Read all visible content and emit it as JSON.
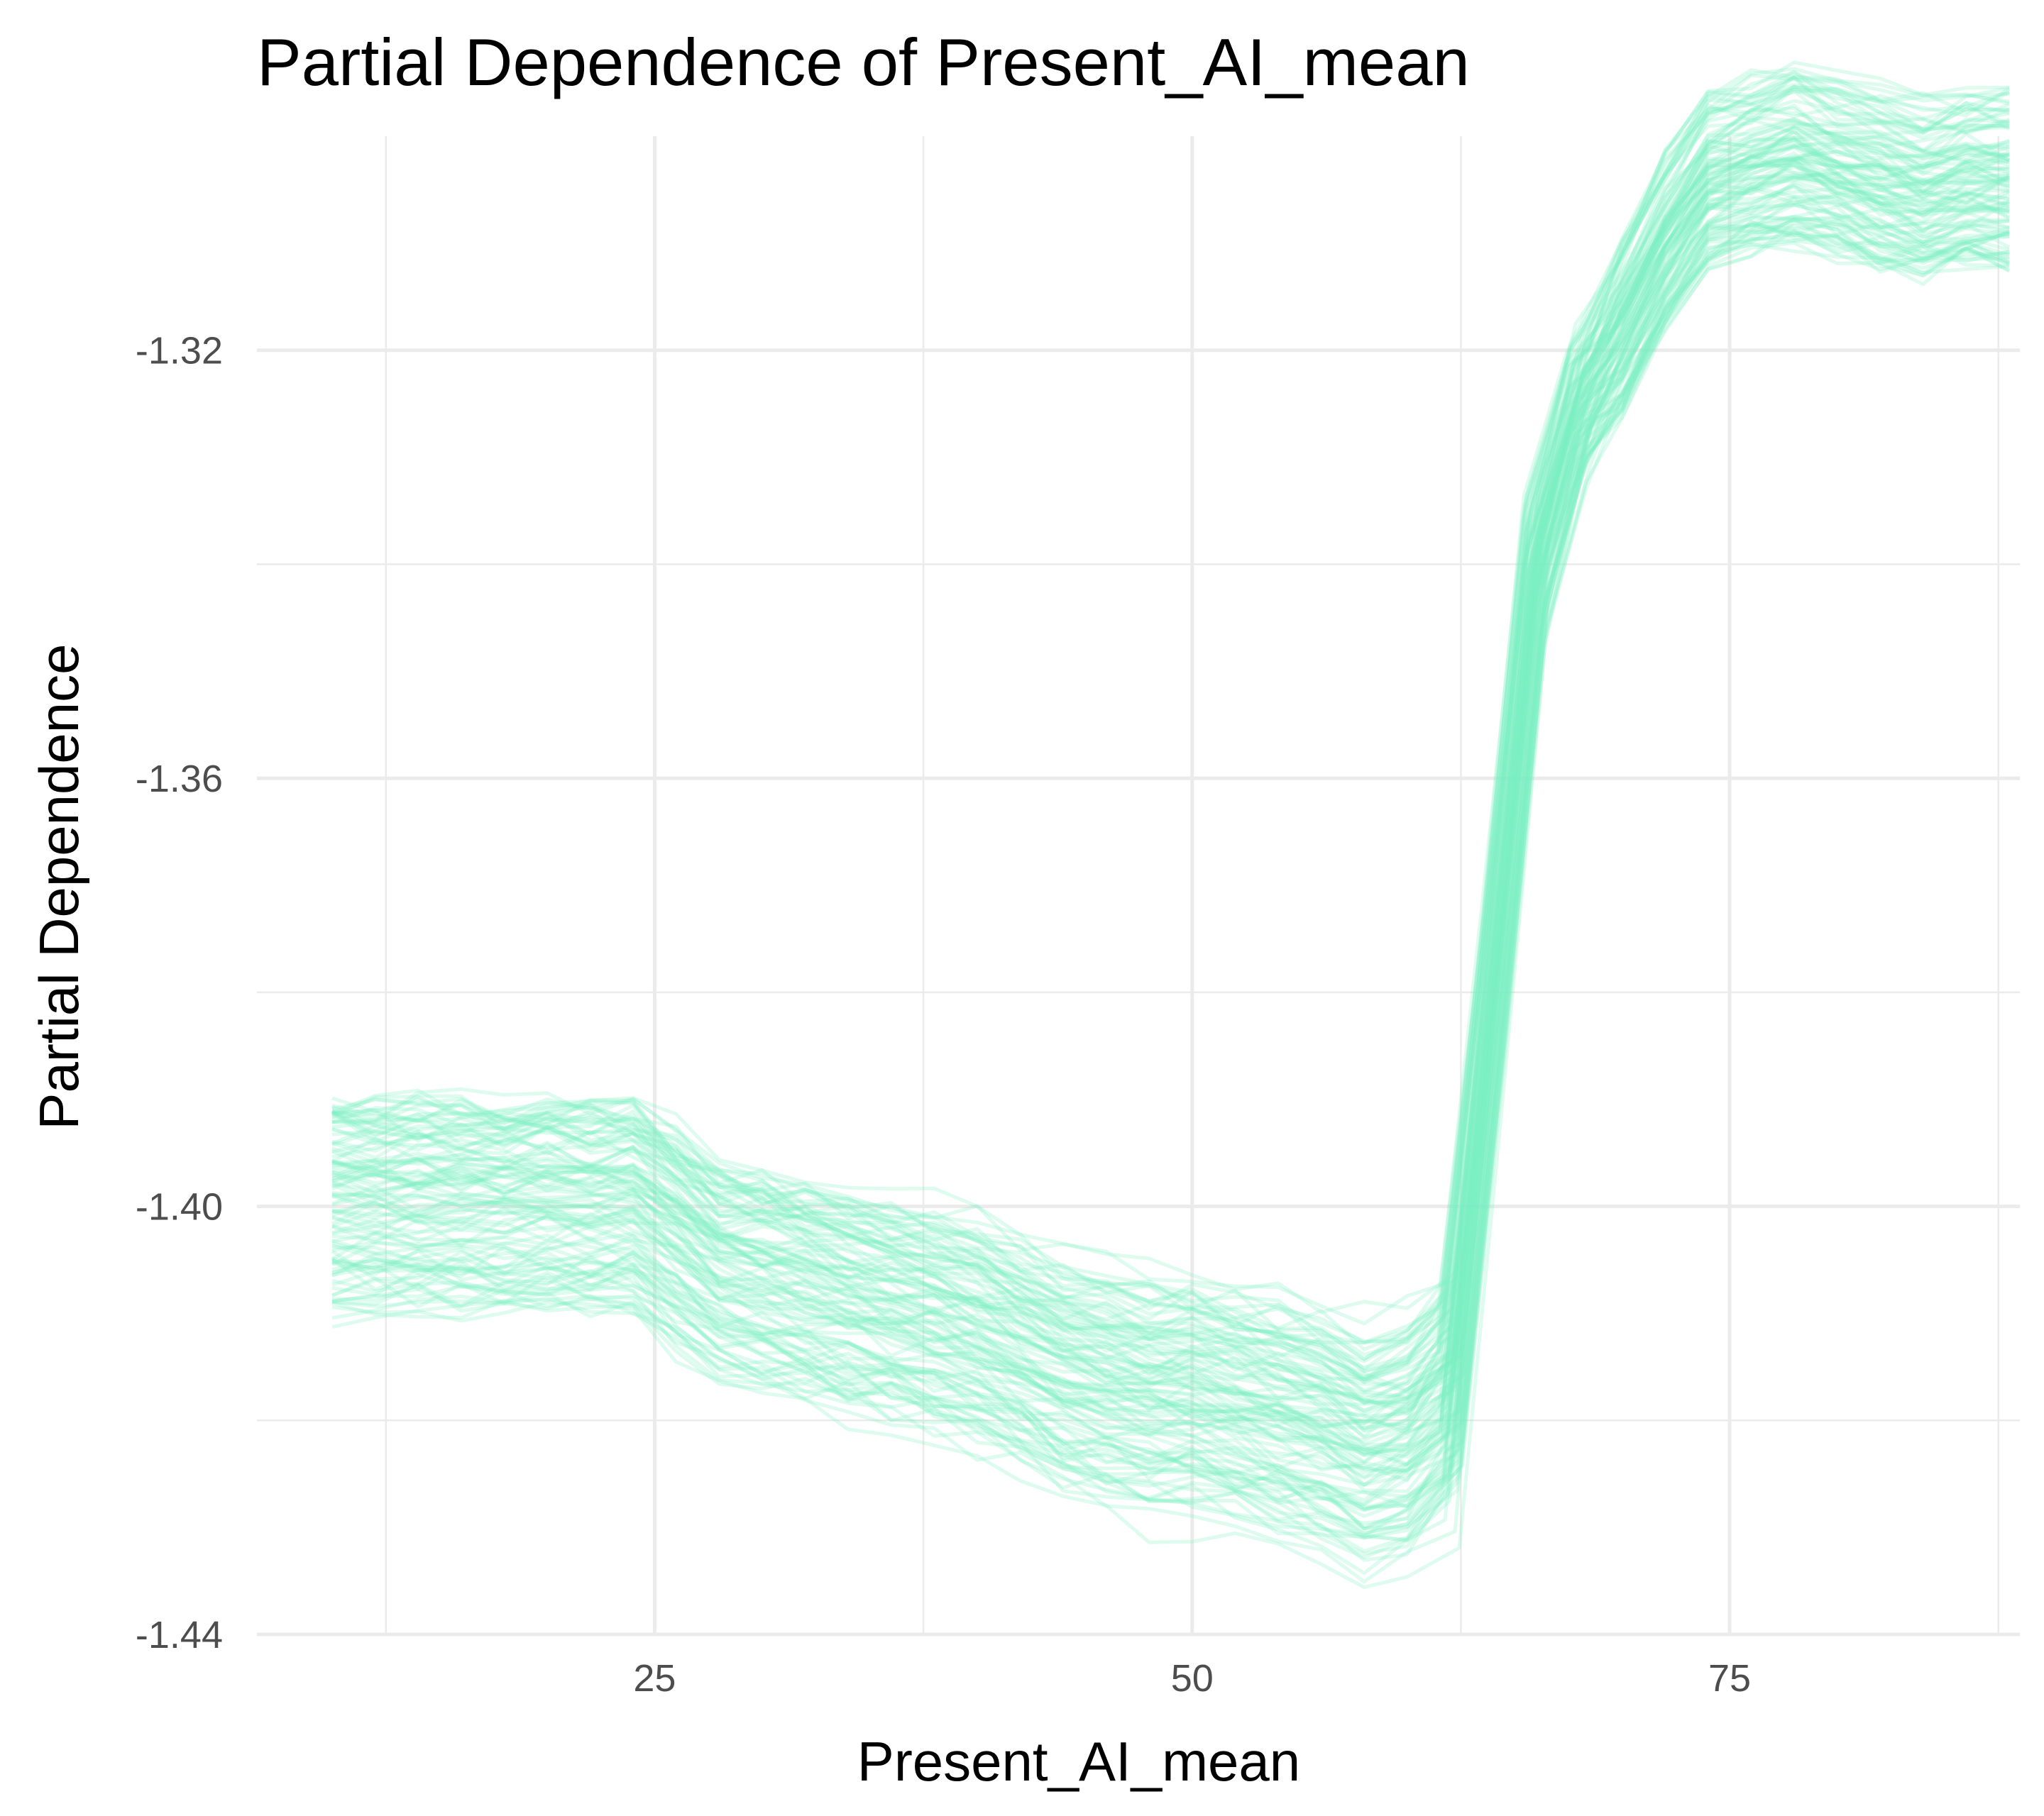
{
  "chart_data": {
    "type": "line",
    "title": "Partial Dependence of Present_AI_mean",
    "xlabel": "Present_AI_mean",
    "ylabel": "Partial Dependence",
    "xlim": [
      6.5,
      88.5
    ],
    "ylim": [
      -1.44,
      -1.3
    ],
    "x_ticks": [
      25,
      50,
      75
    ],
    "x_tick_labels": [
      "25",
      "50",
      "75"
    ],
    "y_ticks": [
      -1.44,
      -1.4,
      -1.36,
      -1.32
    ],
    "y_tick_labels": [
      "-1.44",
      "-1.40",
      "-1.36",
      "-1.32"
    ],
    "grid": true,
    "line_color": "#7defc4",
    "line_opacity": 0.25,
    "x": [
      10,
      12,
      14,
      16,
      18,
      20,
      22,
      24,
      26,
      28,
      30,
      32,
      34,
      36,
      38,
      40,
      42,
      44,
      46,
      48,
      50,
      52,
      54,
      56,
      58,
      60,
      62,
      64,
      66,
      68,
      70,
      72,
      74,
      76,
      78,
      80,
      82,
      84,
      86,
      88
    ],
    "mean_curve": [
      -1.4,
      -1.4,
      -1.4,
      -1.4,
      -1.4,
      -1.4,
      -1.4,
      -1.4,
      -1.403,
      -1.406,
      -1.407,
      -1.408,
      -1.409,
      -1.41,
      -1.411,
      -1.412,
      -1.414,
      -1.416,
      -1.417,
      -1.418,
      -1.418,
      -1.419,
      -1.42,
      -1.421,
      -1.423,
      -1.422,
      -1.418,
      -1.38,
      -1.34,
      -1.325,
      -1.318,
      -1.31,
      -1.304,
      -1.303,
      -1.302,
      -1.303,
      -1.304,
      -1.305,
      -1.304,
      -1.304
    ],
    "curve_count": 110
  }
}
